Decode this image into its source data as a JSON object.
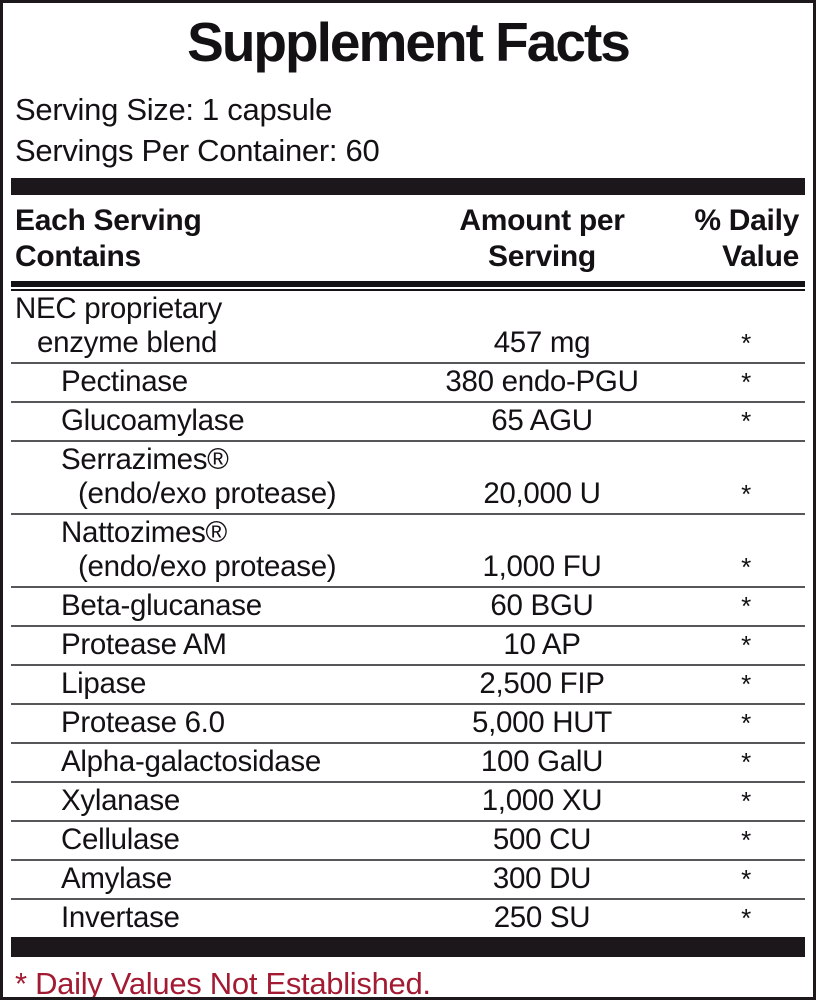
{
  "label": {
    "title": "Supplement Facts",
    "serving_size": "Serving Size: 1 capsule",
    "servings_per_container": "Servings Per Container: 60",
    "header": {
      "col_ingredient": "Each Serving\nContains",
      "col_amount": "Amount per\nServing",
      "col_daily_value": "% Daily\nValue"
    },
    "rows": [
      {
        "lines": [
          {
            "text": "NEC proprietary",
            "indent": 0
          },
          {
            "text": "enzyme blend",
            "indent": 1
          }
        ],
        "amount": "457 mg",
        "dv": "*"
      },
      {
        "lines": [
          {
            "text": "Pectinase",
            "indent": 2
          }
        ],
        "amount": "380 endo-PGU",
        "dv": "*"
      },
      {
        "lines": [
          {
            "text": "Glucoamylase",
            "indent": 2
          }
        ],
        "amount": "65 AGU",
        "dv": "*"
      },
      {
        "lines": [
          {
            "text": "Serrazimes®",
            "indent": 2
          },
          {
            "text": "(endo/exo protease)",
            "indent": 3
          }
        ],
        "amount": "20,000 U",
        "dv": "*"
      },
      {
        "lines": [
          {
            "text": "Nattozimes®",
            "indent": 2
          },
          {
            "text": "(endo/exo protease)",
            "indent": 3
          }
        ],
        "amount": "1,000 FU",
        "dv": "*"
      },
      {
        "lines": [
          {
            "text": "Beta-glucanase",
            "indent": 2
          }
        ],
        "amount": "60 BGU",
        "dv": "*"
      },
      {
        "lines": [
          {
            "text": "Protease AM",
            "indent": 2
          }
        ],
        "amount": "10 AP",
        "dv": "*"
      },
      {
        "lines": [
          {
            "text": "Lipase",
            "indent": 2
          }
        ],
        "amount": "2,500 FIP",
        "dv": "*"
      },
      {
        "lines": [
          {
            "text": "Protease 6.0",
            "indent": 2
          }
        ],
        "amount": "5,000 HUT",
        "dv": "*"
      },
      {
        "lines": [
          {
            "text": "Alpha-galactosidase",
            "indent": 2
          }
        ],
        "amount": "100 GalU",
        "dv": "*"
      },
      {
        "lines": [
          {
            "text": "Xylanase",
            "indent": 2
          }
        ],
        "amount": "1,000 XU",
        "dv": "*"
      },
      {
        "lines": [
          {
            "text": "Cellulase",
            "indent": 2
          }
        ],
        "amount": "500 CU",
        "dv": "*"
      },
      {
        "lines": [
          {
            "text": "Amylase",
            "indent": 2
          }
        ],
        "amount": "300 DU",
        "dv": "*"
      },
      {
        "lines": [
          {
            "text": "Invertase",
            "indent": 2
          }
        ],
        "amount": "250 SU",
        "dv": "*"
      }
    ],
    "footnote": "* Daily Values Not Established.",
    "colors": {
      "footnote_red": "#a31b33",
      "rule_black": "#1b171b",
      "separator_gray": "#57575a"
    }
  }
}
